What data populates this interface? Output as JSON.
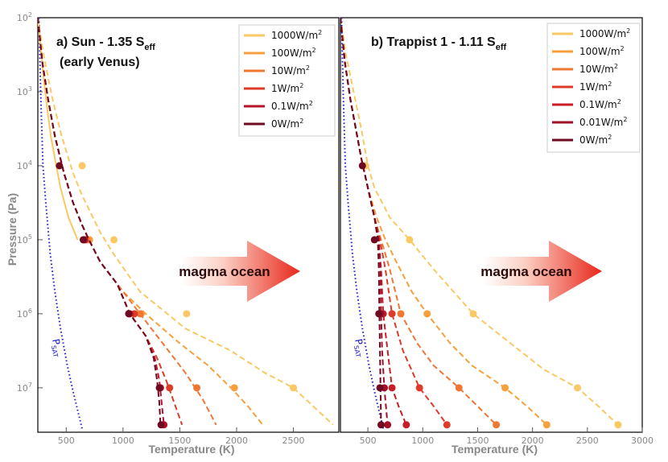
{
  "chart_data": [
    {
      "type": "line",
      "panel": "a",
      "title_main": "a) Sun - 1.35 S",
      "title_sub": "eff",
      "title_line2": "(early Venus)",
      "xlabel": "Temperature (K)",
      "ylabel": "Pressure (Pa)",
      "xlim": [
        250,
        2900
      ],
      "ylim_log10": [
        2,
        7.6
      ],
      "x_ticks": [
        500,
        1000,
        1500,
        2000,
        2500
      ],
      "annotation": "magma ocean",
      "psat_label": "P",
      "psat_sub": "SAT",
      "psat_curve": {
        "x": [
          260,
          275,
          295,
          320,
          360,
          400,
          450,
          510,
          560,
          600,
          640
        ],
        "y": [
          2,
          3,
          4,
          4.5,
          5.2,
          5.7,
          6.2,
          6.7,
          7.05,
          7.3,
          7.55
        ]
      },
      "series": [
        {
          "name": "1000W/m",
          "color": "#fac864",
          "solid": {
            "x": [
              250,
              275,
              300,
              330,
              365,
              400,
              450,
              520,
              600
            ],
            "y": [
              2,
              2.4,
              2.8,
              3.2,
              3.6,
              3.9,
              4.3,
              4.7,
              5.0
            ]
          },
          "dashed": {
            "x": [
              250,
              300,
              380,
              460,
              560,
              640,
              800,
              920,
              1150,
              1550,
              1950,
              2250,
              2500,
              2850
            ],
            "y": [
              2,
              2.5,
              3.1,
              3.6,
              4.1,
              4.4,
              4.9,
              5.2,
              5.7,
              6.2,
              6.5,
              6.8,
              7.0,
              7.5
            ]
          },
          "markers": [
            {
              "x": 640,
              "y": 4
            },
            {
              "x": 920,
              "y": 5
            },
            {
              "x": 1560,
              "y": 6
            },
            {
              "x": 2500,
              "y": 7
            }
          ]
        },
        {
          "name": "100W/m",
          "color": "#f5a03c",
          "dashed": {
            "x": [
              250,
              290,
              340,
              400,
              480,
              560,
              640,
              700,
              800,
              1000,
              1200,
              1500,
              1750,
              1950,
              2100,
              2230
            ],
            "y": [
              2,
              2.6,
              3.1,
              3.6,
              4.1,
              4.5,
              4.8,
              5.0,
              5.3,
              5.7,
              6.0,
              6.4,
              6.7,
              7.0,
              7.25,
              7.5
            ]
          },
          "markers": [
            {
              "x": 705,
              "y": 5
            },
            {
              "x": 1160,
              "y": 6
            },
            {
              "x": 1980,
              "y": 7
            }
          ]
        },
        {
          "name": "10W/m",
          "color": "#ee7733",
          "dashed": {
            "x": [
              250,
              290,
              340,
              400,
              480,
              560,
              640,
              700,
              800,
              950,
              1100,
              1250,
              1400,
              1550,
              1700,
              1820
            ],
            "y": [
              2,
              2.6,
              3.1,
              3.6,
              4.1,
              4.5,
              4.8,
              5.0,
              5.3,
              5.6,
              5.9,
              6.2,
              6.5,
              6.8,
              7.15,
              7.5
            ]
          },
          "markers": [
            {
              "x": 680,
              "y": 5
            },
            {
              "x": 1150,
              "y": 6
            },
            {
              "x": 1650,
              "y": 7
            }
          ]
        },
        {
          "name": "1W/m",
          "color": "#dd3a28",
          "dashed": {
            "x": [
              250,
              290,
              340,
              400,
              480,
              560,
              640,
              700,
              800,
              950,
              1060,
              1200,
              1300,
              1380,
              1450,
              1520
            ],
            "y": [
              2,
              2.6,
              3.1,
              3.6,
              4.1,
              4.5,
              4.8,
              5.0,
              5.3,
              5.6,
              6.0,
              6.3,
              6.6,
              6.9,
              7.2,
              7.5
            ]
          },
          "markers": [
            {
              "x": 665,
              "y": 5
            },
            {
              "x": 1100,
              "y": 6
            },
            {
              "x": 1410,
              "y": 7
            }
          ]
        },
        {
          "name": "0.1W/m",
          "color": "#b8112a",
          "dashed": {
            "x": [
              250,
              290,
              340,
              400,
              480,
              560,
              640,
              700,
              800,
              950,
              1060,
              1200,
              1280,
              1320,
              1340,
              1360
            ],
            "y": [
              2,
              2.6,
              3.1,
              3.6,
              4.1,
              4.5,
              4.8,
              5.0,
              5.3,
              5.6,
              6.0,
              6.3,
              6.6,
              6.9,
              7.2,
              7.5
            ]
          },
          "markers": [
            {
              "x": 660,
              "y": 5
            },
            {
              "x": 1060,
              "y": 6
            },
            {
              "x": 1330,
              "y": 7
            },
            {
              "x": 1360,
              "y": 7.5
            }
          ]
        },
        {
          "name": "0W/m",
          "color": "#6e0a22",
          "dashed": {
            "x": [
              250,
              290,
              340,
              400,
              480,
              560,
              640,
              700,
              800,
              950,
              1060,
              1200,
              1270,
              1300,
              1320,
              1330
            ],
            "y": [
              2,
              2.6,
              3.1,
              3.6,
              4.1,
              4.5,
              4.8,
              5.0,
              5.3,
              5.6,
              6.0,
              6.3,
              6.6,
              6.9,
              7.2,
              7.5
            ]
          },
          "markers": [
            {
              "x": 440,
              "y": 4
            },
            {
              "x": 650,
              "y": 5
            },
            {
              "x": 1050,
              "y": 6
            },
            {
              "x": 1320,
              "y": 7
            },
            {
              "x": 1335,
              "y": 7.5
            }
          ]
        }
      ],
      "legend": [
        {
          "label": "1000W/m",
          "sup": "2",
          "color": "#fac864"
        },
        {
          "label": "100W/m",
          "sup": "2",
          "color": "#f5a03c"
        },
        {
          "label": "10W/m",
          "sup": "2",
          "color": "#ee7733"
        },
        {
          "label": "1W/m",
          "sup": "2",
          "color": "#dd3a28"
        },
        {
          "label": "0.1W/m",
          "sup": "2",
          "color": "#b8112a"
        },
        {
          "label": "0W/m",
          "sup": "2",
          "color": "#6e0a22"
        }
      ]
    },
    {
      "type": "line",
      "panel": "b",
      "title_main": "b) Trappist 1 - 1.11 S",
      "title_sub": "eff",
      "title_line2": "",
      "xlabel": "Temperature (K)",
      "ylabel": "",
      "xlim": [
        250,
        3000
      ],
      "ylim_log10": [
        2,
        7.6
      ],
      "x_ticks": [
        500,
        1000,
        1500,
        2000,
        2500,
        3000
      ],
      "annotation": "magma ocean",
      "psat_label": "P",
      "psat_sub": "SAT",
      "psat_curve": {
        "x": [
          260,
          275,
          295,
          320,
          360,
          400,
          450,
          510,
          560,
          600,
          640
        ],
        "y": [
          2,
          3,
          4,
          4.5,
          5.2,
          5.7,
          6.2,
          6.7,
          7.05,
          7.3,
          7.55
        ]
      },
      "series": [
        {
          "name": "1000W/m",
          "color": "#fac864",
          "dashed": {
            "x": [
              250,
              300,
              370,
              440,
              500,
              560,
              700,
              880,
              1100,
              1460,
              1800,
              2100,
              2410,
              2600,
              2780
            ],
            "y": [
              2,
              2.5,
              3.0,
              3.5,
              4.0,
              4.3,
              4.7,
              5.0,
              5.4,
              6.0,
              6.4,
              6.75,
              7.0,
              7.25,
              7.5
            ]
          },
          "markers": [
            {
              "x": 480,
              "y": 4
            },
            {
              "x": 880,
              "y": 5
            },
            {
              "x": 1460,
              "y": 6
            },
            {
              "x": 2410,
              "y": 7
            },
            {
              "x": 2780,
              "y": 7.5
            }
          ]
        },
        {
          "name": "100W/m",
          "color": "#f5a03c",
          "dashed": {
            "x": [
              250,
              290,
              340,
              390,
              440,
              500,
              580,
              660,
              760,
              900,
              1040,
              1250,
              1450,
              1750,
              1950,
              2130
            ],
            "y": [
              2,
              2.6,
              3.1,
              3.5,
              3.9,
              4.3,
              4.7,
              5.0,
              5.3,
              5.7,
              6.0,
              6.4,
              6.7,
              7.0,
              7.25,
              7.5
            ]
          },
          "markers": [
            {
              "x": 1040,
              "y": 6
            },
            {
              "x": 1750,
              "y": 7
            },
            {
              "x": 2130,
              "y": 7.5
            }
          ]
        },
        {
          "name": "10W/m",
          "color": "#ee7733",
          "dashed": {
            "x": [
              250,
              290,
              340,
              390,
              440,
              500,
              560,
              620,
              700,
              800,
              950,
              1100,
              1330,
              1500,
              1670
            ],
            "y": [
              2,
              2.6,
              3.1,
              3.5,
              3.9,
              4.3,
              4.7,
              5.0,
              5.4,
              6.0,
              6.4,
              6.7,
              7.0,
              7.25,
              7.5
            ]
          },
          "markers": [
            {
              "x": 800,
              "y": 6
            },
            {
              "x": 1330,
              "y": 7
            },
            {
              "x": 1670,
              "y": 7.5
            }
          ]
        },
        {
          "name": "1W/m",
          "color": "#dd3a28",
          "dashed": {
            "x": [
              250,
              290,
              340,
              390,
              440,
              500,
              560,
              610,
              660,
              720,
              820,
              970,
              1100,
              1220
            ],
            "y": [
              2,
              2.6,
              3.1,
              3.5,
              3.9,
              4.3,
              4.7,
              5.0,
              5.4,
              6.0,
              6.5,
              7.0,
              7.25,
              7.5
            ]
          },
          "markers": [
            {
              "x": 720,
              "y": 6
            },
            {
              "x": 970,
              "y": 7
            },
            {
              "x": 1220,
              "y": 7.5
            }
          ]
        },
        {
          "name": "0.1W/m",
          "color": "#c81e28",
          "dashed": {
            "x": [
              250,
              290,
              340,
              390,
              440,
              500,
              560,
              600,
              620,
              640,
              680,
              720,
              780,
              850
            ],
            "y": [
              2,
              2.6,
              3.1,
              3.5,
              3.9,
              4.3,
              4.7,
              5.0,
              5.4,
              6.0,
              6.5,
              7.0,
              7.25,
              7.5
            ]
          },
          "markers": [
            {
              "x": 640,
              "y": 6
            },
            {
              "x": 720,
              "y": 7
            },
            {
              "x": 850,
              "y": 7.5
            }
          ]
        },
        {
          "name": "0.01W/m",
          "color": "#a0102a",
          "dashed": {
            "x": [
              250,
              290,
              340,
              390,
              440,
              500,
              560,
              600,
              615,
              620,
              630,
              650,
              680
            ],
            "y": [
              2,
              2.6,
              3.1,
              3.5,
              3.9,
              4.3,
              4.7,
              5.0,
              5.4,
              6.0,
              6.5,
              7.0,
              7.5
            ]
          },
          "markers": [
            {
              "x": 620,
              "y": 6
            },
            {
              "x": 650,
              "y": 7
            },
            {
              "x": 680,
              "y": 7.5
            }
          ]
        },
        {
          "name": "0W/m",
          "color": "#6e0a22",
          "dashed": {
            "x": [
              250,
              290,
              340,
              390,
              440,
              500,
              560,
              590,
              600,
              605,
              610,
              615,
              620
            ],
            "y": [
              2,
              2.6,
              3.1,
              3.5,
              3.9,
              4.3,
              4.7,
              5.0,
              5.4,
              6.0,
              6.5,
              7.0,
              7.5
            ]
          },
          "markers": [
            {
              "x": 450,
              "y": 4
            },
            {
              "x": 560,
              "y": 5
            },
            {
              "x": 600,
              "y": 6
            },
            {
              "x": 610,
              "y": 7
            },
            {
              "x": 620,
              "y": 7.5
            }
          ]
        }
      ],
      "legend": [
        {
          "label": "1000W/m",
          "sup": "2",
          "color": "#fac864"
        },
        {
          "label": "100W/m",
          "sup": "2",
          "color": "#f5a03c"
        },
        {
          "label": "10W/m",
          "sup": "2",
          "color": "#ee7733"
        },
        {
          "label": "1W/m",
          "sup": "2",
          "color": "#dd3a28"
        },
        {
          "label": "0.1W/m",
          "sup": "2",
          "color": "#c81e28"
        },
        {
          "label": "0.01W/m",
          "sup": "2",
          "color": "#a0102a"
        },
        {
          "label": "0W/m",
          "sup": "2",
          "color": "#6e0a22"
        }
      ]
    }
  ],
  "y_tick_labels": [
    {
      "base": "10",
      "exp": "2",
      "logv": 2
    },
    {
      "base": "10",
      "exp": "3",
      "logv": 3
    },
    {
      "base": "10",
      "exp": "4",
      "logv": 4
    },
    {
      "base": "10",
      "exp": "5",
      "logv": 5
    },
    {
      "base": "10",
      "exp": "6",
      "logv": 6
    },
    {
      "base": "10",
      "exp": "7",
      "logv": 7
    }
  ]
}
